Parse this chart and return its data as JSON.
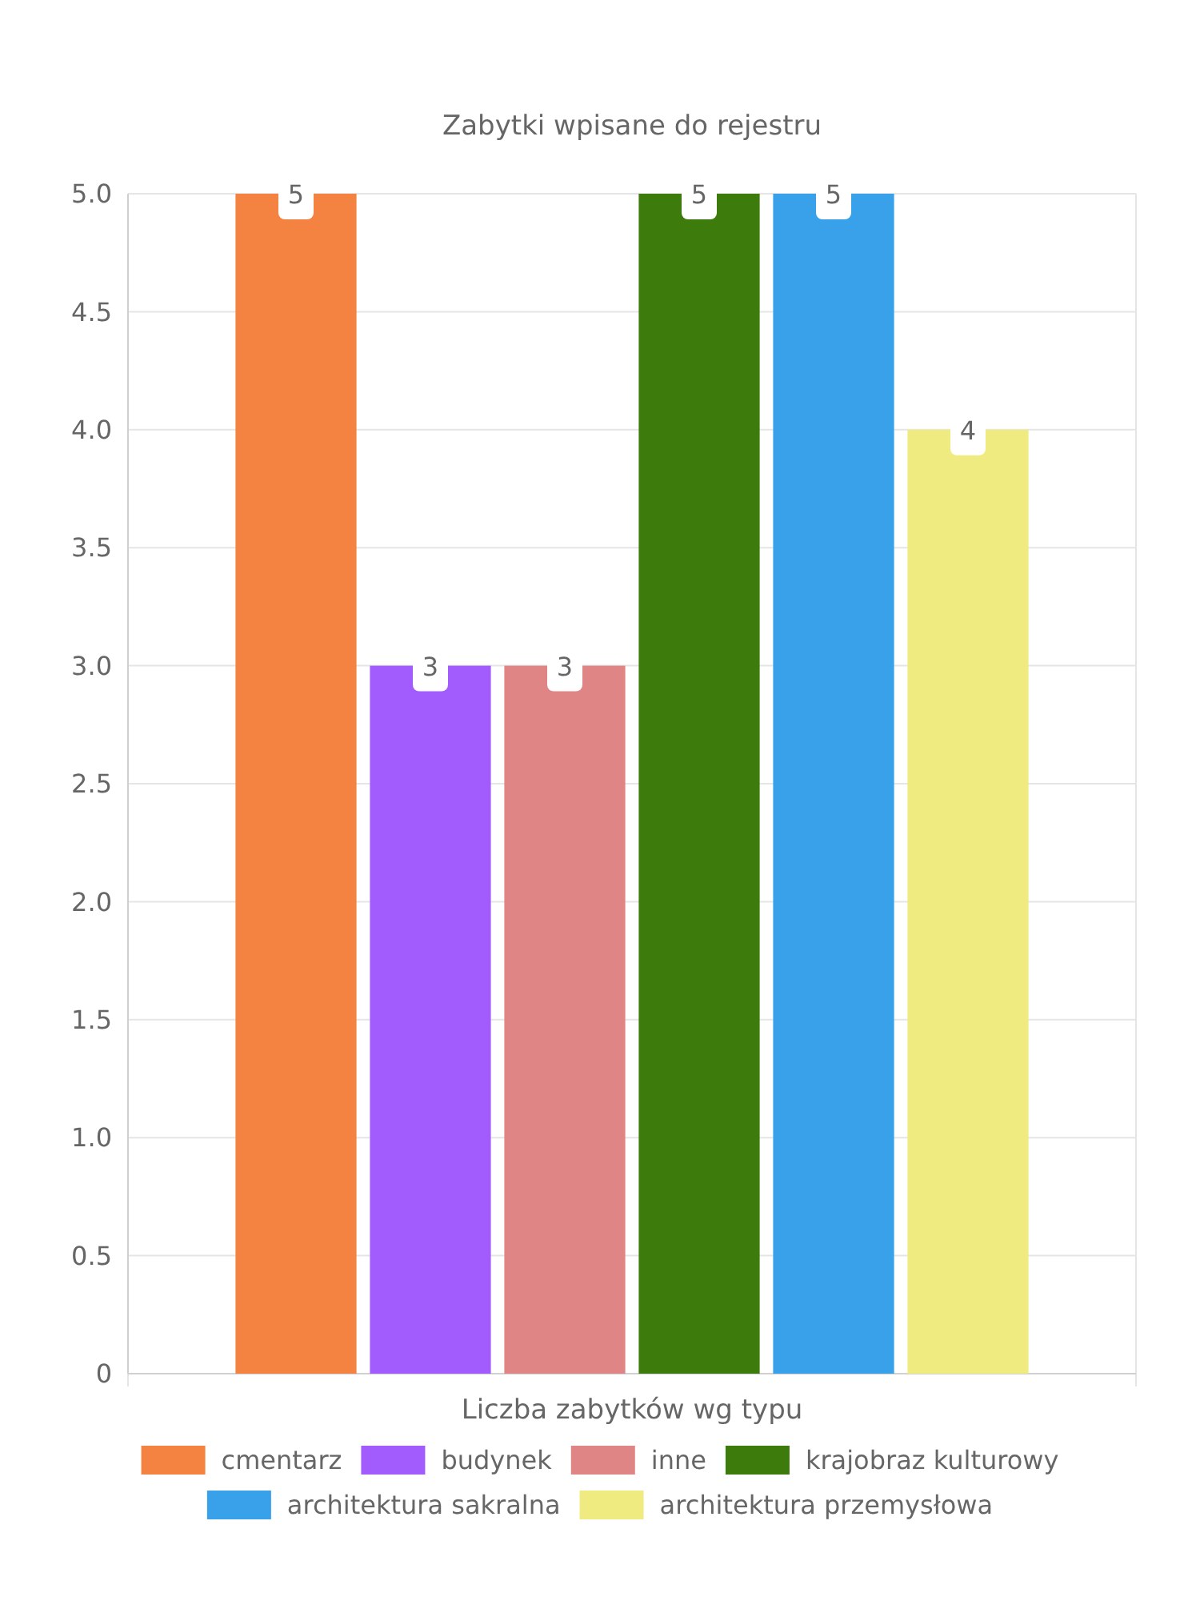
{
  "chart_data": {
    "type": "bar",
    "title": "Zabytki wpisane do rejestru",
    "xlabel": "Liczba zabytków wg typu",
    "categories": [
      null
    ],
    "series": [
      {
        "name": "cmentarz",
        "color": "#f48240",
        "values": [
          5
        ]
      },
      {
        "name": "budynek",
        "color": "#a25cfd",
        "values": [
          3
        ]
      },
      {
        "name": "inne",
        "color": "#e08585",
        "values": [
          3
        ]
      },
      {
        "name": "krajobraz kulturowy",
        "color": "#3e7b0d",
        "values": [
          5
        ]
      },
      {
        "name": "architektura sakralna",
        "color": "#38a1ea",
        "values": [
          5
        ]
      },
      {
        "name": "architektura przemysłowa",
        "color": "#f0eb80",
        "values": [
          4
        ]
      }
    ],
    "ylim": [
      0,
      5
    ],
    "yticks": [
      0,
      0.5,
      {
        "value": 1,
        "label": "1.0"
      },
      1.5,
      {
        "value": 2,
        "label": "2.0"
      },
      2.5,
      {
        "value": 3,
        "label": "3.0"
      },
      3.5,
      {
        "value": 4,
        "label": "4.0"
      },
      4.5,
      {
        "value": 5,
        "label": "5.0"
      }
    ],
    "grid": true,
    "legend": "bottom",
    "data_labels": true
  }
}
